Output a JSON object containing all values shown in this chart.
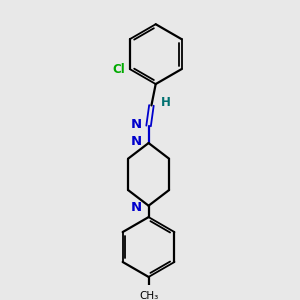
{
  "background_color": "#e8e8e8",
  "bond_color": "#000000",
  "N_color": "#0000cc",
  "Cl_color": "#00aa00",
  "H_color": "#007070",
  "figsize": [
    3.0,
    3.0
  ],
  "dpi": 100,
  "xlim": [
    0,
    10
  ],
  "ylim": [
    0,
    10
  ]
}
